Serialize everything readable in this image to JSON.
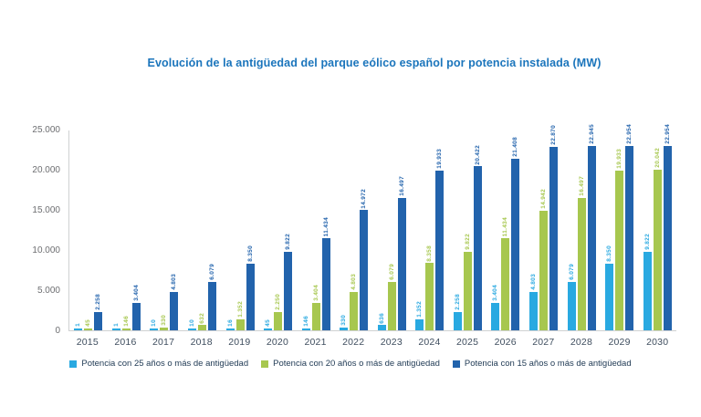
{
  "title": "Evolución de la antigüedad del parque eólico español por potencia instalada (MW)",
  "colors": {
    "series_25": "#29a9e1",
    "series_20": "#a7c74f",
    "series_15": "#2263ac",
    "title_text": "#1b75bc",
    "axis_tick_text": "#6d6e71",
    "year_text": "#3f4e5f",
    "legend_text": "#223c56",
    "axis_line": "#cfd1d2"
  },
  "chart_data": {
    "type": "bar",
    "title": "Evolución de la antigüedad del parque eólico español por potencia instalada (MW)",
    "categories": [
      "2015",
      "2016",
      "2017",
      "2018",
      "2019",
      "2020",
      "2021",
      "2022",
      "2023",
      "2024",
      "2025",
      "2026",
      "2027",
      "2028",
      "2029",
      "2030"
    ],
    "series": [
      {
        "name": "Potencia con 25 años o más de antigüedad",
        "color_key": "series_25",
        "values": [
          1,
          1,
          10,
          10,
          16,
          45,
          146,
          330,
          636,
          1352,
          2258,
          3404,
          4803,
          6079,
          8350,
          9822
        ],
        "labels": [
          "1",
          "1",
          "10",
          "10",
          "16",
          "45",
          "146",
          "330",
          "636",
          "1.352",
          "2.258",
          "3.404",
          "4.803",
          "6.079",
          "8.350",
          "9.822"
        ]
      },
      {
        "name": "Potencia con 20 años o más de antigüedad",
        "color_key": "series_20",
        "values": [
          45,
          146,
          330,
          632,
          1352,
          2250,
          3404,
          4803,
          6079,
          8358,
          9822,
          11434,
          14942,
          16497,
          19933,
          20042
        ],
        "labels": [
          "45",
          "146",
          "330",
          "632",
          "1.352",
          "2.250",
          "3.404",
          "4.803",
          "6.079",
          "8.358",
          "9.822",
          "11.434",
          "14.942",
          "16.497",
          "19.933",
          "20.042"
        ]
      },
      {
        "name": "Potencia con 15 años o más de antigüedad",
        "color_key": "series_15",
        "values": [
          2258,
          3404,
          4803,
          6079,
          8350,
          9822,
          11434,
          14972,
          16497,
          19933,
          20422,
          21408,
          22870,
          22945,
          22954,
          22954
        ],
        "labels": [
          "2.258",
          "3.404",
          "4.803",
          "6.079",
          "8.350",
          "9.822",
          "11.434",
          "14.972",
          "16.497",
          "19.933",
          "20.422",
          "21.408",
          "22.870",
          "22.945",
          "22.954",
          "22.954"
        ]
      }
    ],
    "xlabel": "",
    "ylabel": "",
    "ylim": [
      0,
      25000
    ],
    "yticks": [
      {
        "value": 0,
        "label": "0"
      },
      {
        "value": 5000,
        "label": "5.000"
      },
      {
        "value": 10000,
        "label": "10.000"
      },
      {
        "value": 15000,
        "label": "15.000"
      },
      {
        "value": 20000,
        "label": "20.000"
      },
      {
        "value": 25000,
        "label": "25.000"
      }
    ],
    "grid": false,
    "legend_position": "bottom",
    "value_labels": "rotated-vertical, colored per series"
  }
}
